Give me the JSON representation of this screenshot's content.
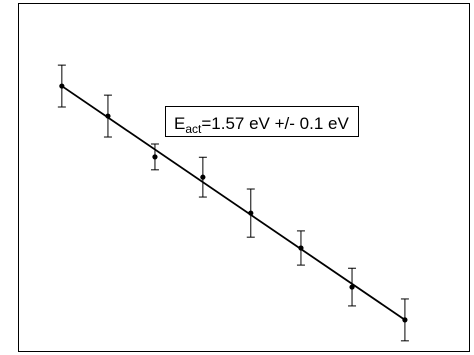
{
  "chart_data": {
    "type": "scatter",
    "x": [
      9.7,
      19.9,
      30.3,
      40.9,
      51.5,
      62.6,
      73.9,
      85.6
    ],
    "values": [
      76.2,
      67.6,
      55.9,
      50.1,
      39.8,
      29.8,
      18.6,
      9.2
    ],
    "errors": [
      6.0,
      6.0,
      3.7,
      5.7,
      6.9,
      4.9,
      5.4,
      6.0
    ],
    "color": "#000000",
    "fit": {
      "x": [
        9.7,
        85.6
      ],
      "y": [
        76.2,
        9.2
      ],
      "color": "#000000"
    },
    "annotation": {
      "main": "E",
      "subscript": "act",
      "text": "=1.57 eV +/- 0.1 eV"
    },
    "xlim": [
      0,
      100
    ],
    "ylim": [
      0,
      100
    ]
  }
}
